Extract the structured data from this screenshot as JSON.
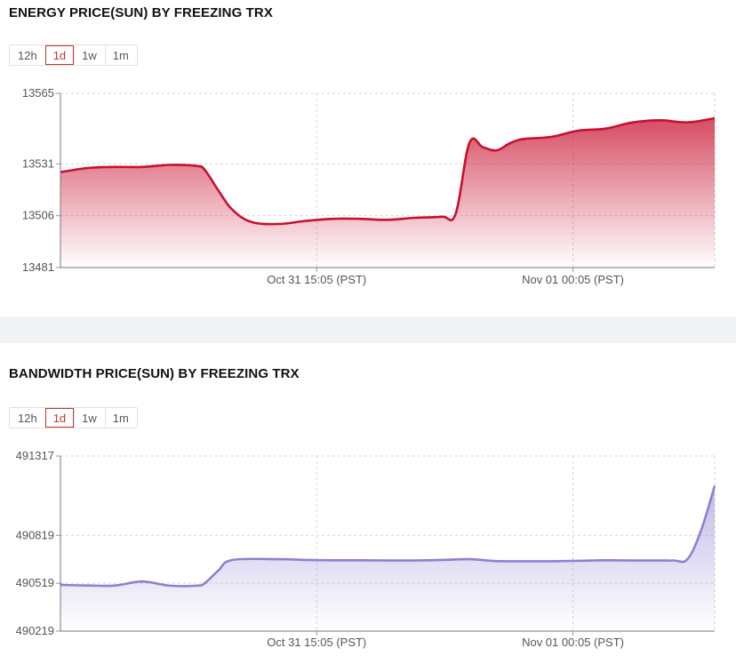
{
  "chart_data": [
    {
      "type": "area",
      "title": "ENERGY PRICE(SUN) BY FREEZING TRX",
      "ranges": [
        "12h",
        "1d",
        "1w",
        "1m"
      ],
      "active_range": "1d",
      "color": "#c8102e",
      "grid": true,
      "ylim": [
        13481,
        13565
      ],
      "yticks": [
        "13565",
        "13531",
        "13506",
        "13481"
      ],
      "xlim": [
        0,
        24
      ],
      "xticks": [
        {
          "x": 9.4,
          "label": "Oct 31 15:05 (PST)"
        },
        {
          "x": 18.8,
          "label": "Nov 01 00:05 (PST)"
        }
      ],
      "x": [
        0,
        1,
        2,
        3,
        4,
        5,
        5.3,
        5.8,
        6.3,
        7,
        8,
        9,
        10,
        11,
        12,
        13,
        14,
        14.5,
        15,
        15.5,
        16,
        16.5,
        17,
        18,
        19,
        20,
        21,
        22,
        23,
        24
      ],
      "values": [
        13527,
        13529,
        13529.5,
        13529.5,
        13530.5,
        13530,
        13528,
        13518,
        13509,
        13503,
        13502,
        13503.5,
        13504.5,
        13504.5,
        13504,
        13505,
        13505.5,
        13507,
        13541,
        13539,
        13537.5,
        13541,
        13543,
        13544,
        13547,
        13548,
        13551,
        13552,
        13551,
        13553
      ]
    },
    {
      "type": "area",
      "title": "BANDWIDTH PRICE(SUN) BY FREEZING TRX",
      "ranges": [
        "12h",
        "1d",
        "1w",
        "1m"
      ],
      "active_range": "1d",
      "color": "#8a82d2",
      "grid": true,
      "ylim": [
        490219,
        491317
      ],
      "yticks": [
        "491317",
        "490819",
        "490519",
        "490219"
      ],
      "xlim": [
        0,
        24
      ],
      "xticks": [
        {
          "x": 9.4,
          "label": "Oct 31 15:05 (PST)"
        },
        {
          "x": 18.8,
          "label": "Nov 01 00:05 (PST)"
        }
      ],
      "x": [
        0,
        1,
        2,
        3,
        4,
        5,
        5.3,
        5.8,
        6.3,
        8,
        9,
        10,
        11,
        12,
        13,
        14,
        15,
        16,
        17,
        18,
        19,
        20,
        21,
        22,
        22.5,
        23,
        23.5,
        24
      ],
      "values": [
        490509,
        490505,
        490505,
        490530,
        490504,
        490504,
        490520,
        490600,
        490665,
        490670,
        490665,
        490663,
        490663,
        490662,
        490662,
        490665,
        490670,
        490658,
        490657,
        490657,
        490660,
        490663,
        490662,
        490662,
        490662,
        490670,
        490850,
        491130
      ]
    }
  ]
}
